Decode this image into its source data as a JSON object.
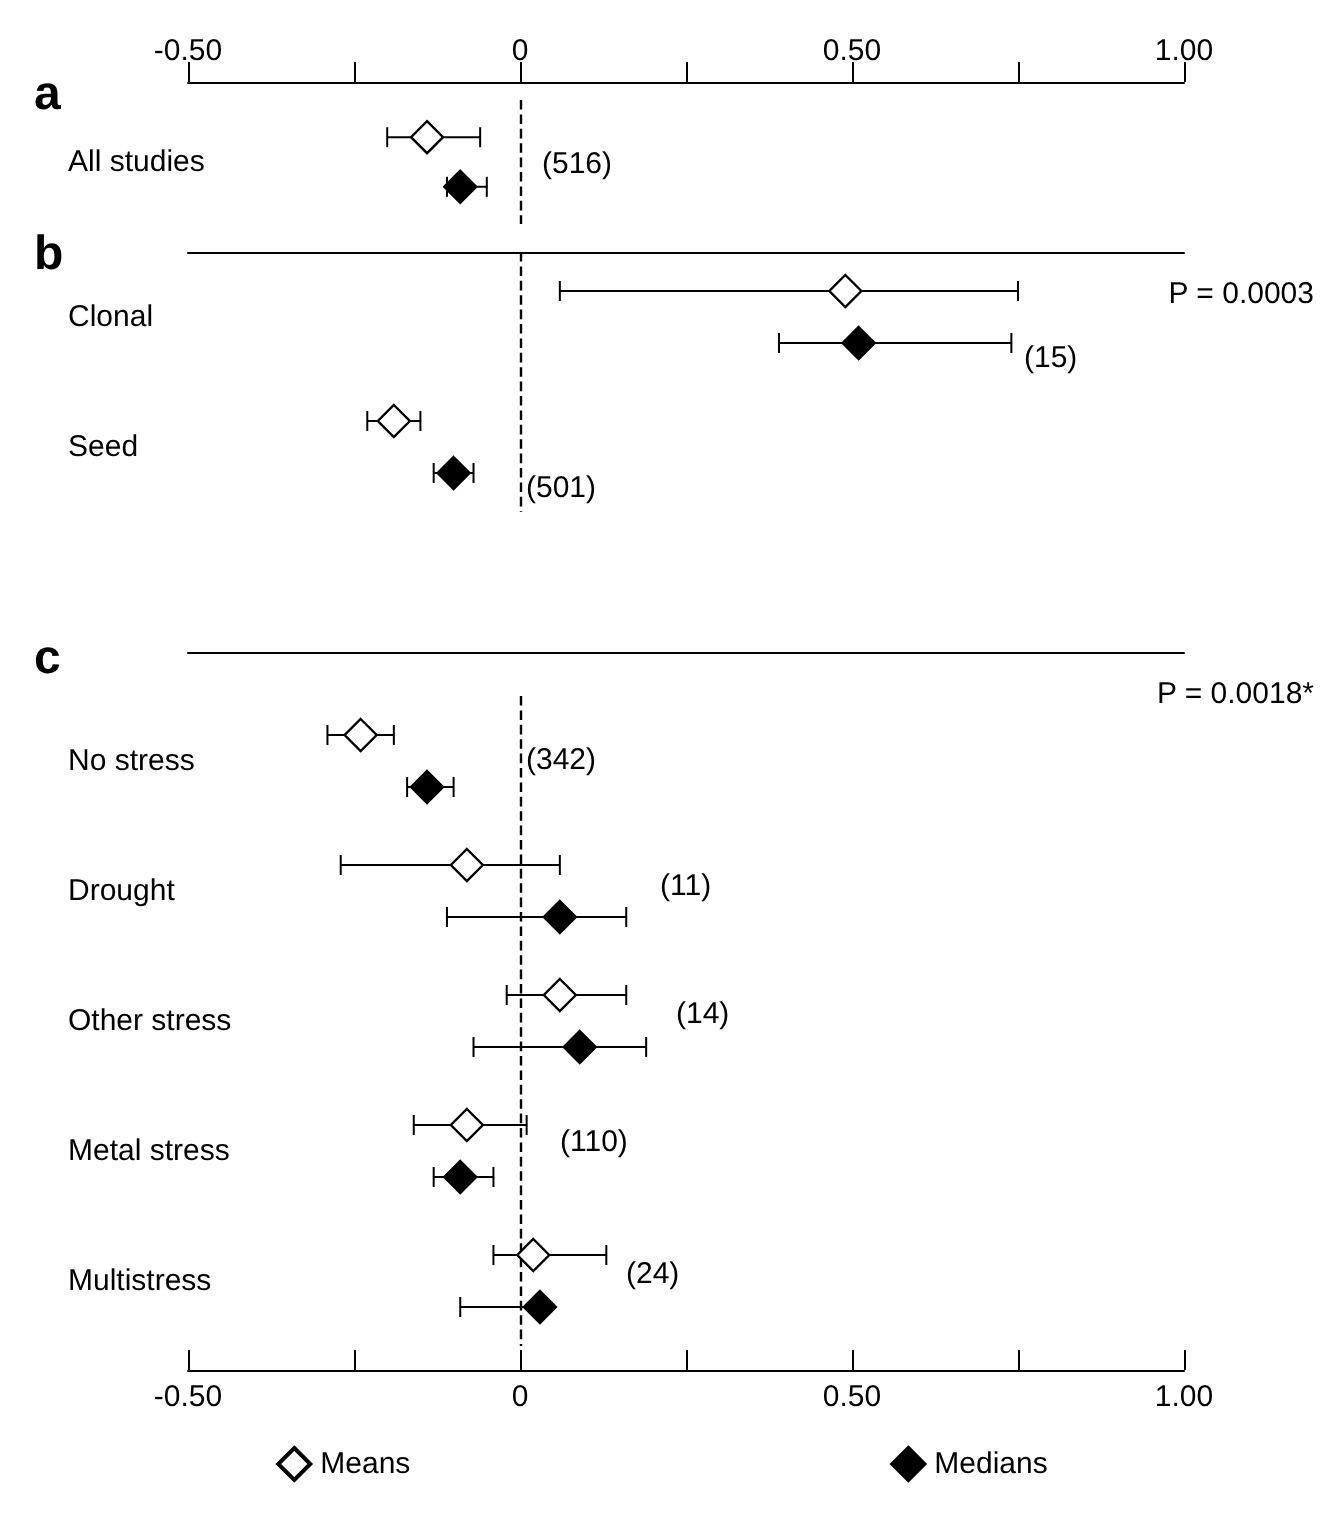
{
  "chart_data": [
    {
      "type": "scatter",
      "title": "a",
      "orientation": "horizontal",
      "categories": [
        "All studies"
      ],
      "marker": "diamond",
      "xlim": [
        -0.5,
        1.0
      ],
      "xticks": [
        {
          "value": -0.5,
          "label": "-0.50"
        },
        {
          "value": -0.25,
          "label": null
        },
        0,
        {
          "value": 0.25,
          "label": null
        },
        {
          "value": 0.5,
          "label": "0.50"
        },
        {
          "value": 0.75,
          "label": null
        },
        {
          "value": 1.0,
          "label": "1.00"
        }
      ],
      "series": [
        {
          "color": "#ffffff",
          "values": [
            -0.14
          ],
          "errors": [
            [
              -0.2,
              -0.06
            ]
          ]
        },
        {
          "color": "#000000",
          "values": [
            -0.09
          ],
          "errors": [
            [
              -0.11,
              -0.05
            ]
          ]
        }
      ],
      "ref_lines": [
        {
          "axis": "x",
          "value": 0,
          "line_style": "dashed"
        }
      ],
      "annotations": [
        "(516)"
      ]
    },
    {
      "type": "scatter",
      "title": "b",
      "orientation": "horizontal",
      "categories": [
        "Clonal",
        "Seed"
      ],
      "marker": "diamond",
      "tick_labels": "y",
      "xlim": [
        -0.5,
        1.0
      ],
      "series": [
        {
          "color": "#ffffff",
          "values": [
            0.49,
            -0.19
          ],
          "errors": [
            [
              0.06,
              0.75
            ],
            [
              -0.23,
              -0.15
            ]
          ]
        },
        {
          "color": "#000000",
          "values": [
            0.51,
            -0.1
          ],
          "errors": [
            [
              0.39,
              0.74
            ],
            [
              -0.13,
              -0.07
            ]
          ]
        }
      ],
      "ref_lines": [
        {
          "axis": "x",
          "value": 0,
          "line_style": "dashed"
        }
      ],
      "annotations": [
        "P = 0.0003",
        "(15)",
        "(501)"
      ]
    },
    {
      "type": "scatter",
      "title": "c",
      "orientation": "horizontal",
      "categories": [
        "No stress",
        "Drought",
        "Other stress",
        "Metal stress",
        "Multistress"
      ],
      "marker": "diamond",
      "legend": "bottom",
      "xlim": [
        -0.5,
        1.0
      ],
      "xticks": [
        {
          "value": -0.5,
          "label": "-0.50"
        },
        {
          "value": -0.25,
          "label": null
        },
        0,
        {
          "value": 0.25,
          "label": null
        },
        {
          "value": 0.5,
          "label": "0.50"
        },
        {
          "value": 0.75,
          "label": null
        },
        {
          "value": 1.0,
          "label": "1.00"
        }
      ],
      "series": [
        {
          "name": "Means",
          "color": "#ffffff",
          "values": [
            -0.24,
            -0.08,
            0.06,
            -0.08,
            0.02
          ],
          "errors": [
            [
              -0.29,
              -0.19
            ],
            [
              -0.27,
              0.06
            ],
            [
              -0.02,
              0.16
            ],
            [
              -0.16,
              0.01
            ],
            [
              -0.04,
              0.13
            ]
          ]
        },
        {
          "name": "Medians",
          "color": "#000000",
          "values": [
            -0.14,
            0.06,
            0.09,
            -0.09,
            0.03
          ],
          "errors": [
            [
              -0.17,
              -0.1
            ],
            [
              -0.11,
              0.16
            ],
            [
              -0.07,
              0.19
            ],
            [
              -0.13,
              -0.04
            ],
            [
              -0.09,
              0.04
            ]
          ]
        }
      ],
      "ref_lines": [
        {
          "axis": "x",
          "value": 0,
          "line_style": "dashed"
        }
      ],
      "annotations": [
        "P = 0.0018*",
        "(342)",
        "(11)",
        "(14)",
        "(110)",
        "(24)"
      ]
    }
  ]
}
